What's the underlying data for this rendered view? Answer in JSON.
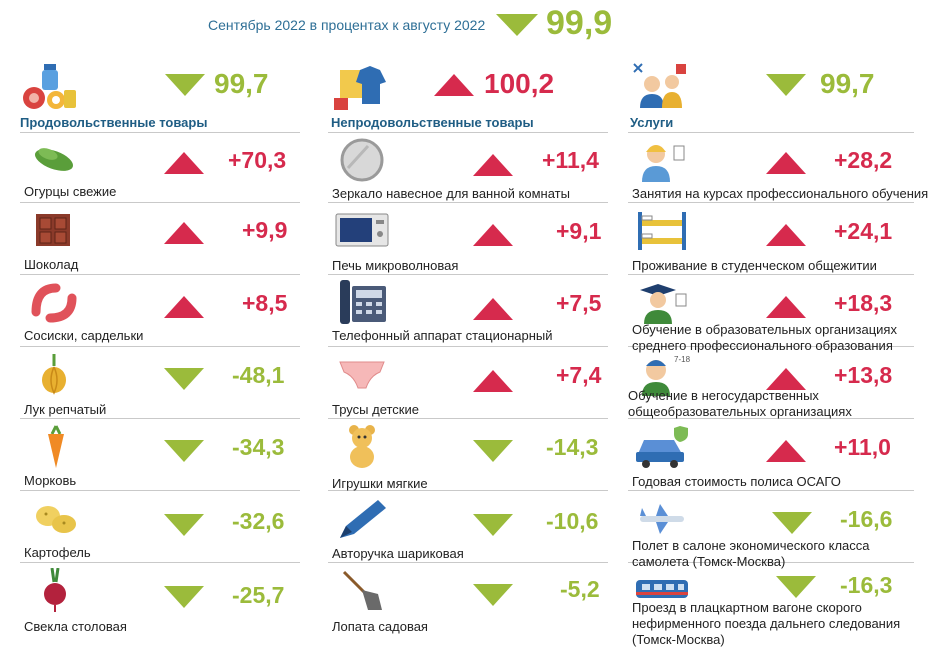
{
  "header": {
    "label": "Сентябрь 2022 в процентах к августу 2022",
    "value": "99,9",
    "direction": "down"
  },
  "colors": {
    "up": "#d62a4d",
    "down": "#9bbb3b",
    "title": "#1f5d84",
    "divider": "#c9c9c9"
  },
  "columns": [
    {
      "title": "Продовольственные товары",
      "value": "99,7",
      "direction": "down",
      "icon": "groceries-icon",
      "items": [
        {
          "name": [
            "Огурцы свежие"
          ],
          "value": "+70,3",
          "direction": "up",
          "icon": "cucumber-icon"
        },
        {
          "name": [
            "Шоколад"
          ],
          "value": "+9,9",
          "direction": "up",
          "icon": "chocolate-icon"
        },
        {
          "name": [
            "Сосиски, сардельки"
          ],
          "value": "+8,5",
          "direction": "up",
          "icon": "sausage-icon"
        },
        {
          "name": [
            "Лук репчатый"
          ],
          "value": "-48,1",
          "direction": "down",
          "icon": "onion-icon"
        },
        {
          "name": [
            "Морковь"
          ],
          "value": "-34,3",
          "direction": "down",
          "icon": "carrot-icon"
        },
        {
          "name": [
            "Картофель"
          ],
          "value": "-32,6",
          "direction": "down",
          "icon": "potato-icon"
        },
        {
          "name": [
            "Свекла столовая"
          ],
          "value": "-25,7",
          "direction": "down",
          "icon": "beet-icon"
        }
      ]
    },
    {
      "title": "Непродовольственные товары",
      "value": "100,2",
      "direction": "up",
      "icon": "clothes-icon",
      "items": [
        {
          "name": [
            "Зеркало навесное для ванной комнаты"
          ],
          "value": "+11,4",
          "direction": "up",
          "icon": "mirror-icon"
        },
        {
          "name": [
            "Печь микроволновая"
          ],
          "value": "+9,1",
          "direction": "up",
          "icon": "microwave-icon"
        },
        {
          "name": [
            "Телефонный аппарат стационарный"
          ],
          "value": "+7,5",
          "direction": "up",
          "icon": "phone-icon"
        },
        {
          "name": [
            "Трусы детские"
          ],
          "value": "+7,4",
          "direction": "up",
          "icon": "underwear-icon"
        },
        {
          "name": [
            "Игрушки мягкие"
          ],
          "value": "-14,3",
          "direction": "down",
          "icon": "teddy-bear-icon"
        },
        {
          "name": [
            "Авторучка шариковая"
          ],
          "value": "-10,6",
          "direction": "down",
          "icon": "pen-icon"
        },
        {
          "name": [
            "Лопата садовая"
          ],
          "value": "-5,2",
          "direction": "down",
          "icon": "shovel-icon"
        }
      ]
    },
    {
      "title": "Услуги",
      "value": "99,7",
      "direction": "down",
      "icon": "services-icon",
      "items": [
        {
          "name": [
            "Занятия на курсах профессионального обучения"
          ],
          "value": "+28,2",
          "direction": "up",
          "icon": "student-icon"
        },
        {
          "name": [
            "Проживание  в студенческом общежитии"
          ],
          "value": "+24,1",
          "direction": "up",
          "icon": "bunk-bed-icon"
        },
        {
          "name": [
            "Обучение в образовательных  организациях",
            "среднего профессионального образования"
          ],
          "value": "+18,3",
          "direction": "up",
          "icon": "graduate-icon"
        },
        {
          "name": [
            "Обучение в негосударственных",
            "общеобразовательных  организациях"
          ],
          "value": "+13,8",
          "direction": "up",
          "icon": "schoolboy-icon"
        },
        {
          "name": [
            "Годовая стоимость полиса ОСАГО"
          ],
          "value": "+11,0",
          "direction": "up",
          "icon": "car-insurance-icon"
        },
        {
          "name": [
            "Полет в салоне экономического  класса",
            "самолета (Томск-Москва)"
          ],
          "value": "-16,6",
          "direction": "down",
          "icon": "airplane-icon"
        },
        {
          "name": [
            "Проезд  в плацкартном вагоне скорого",
            "нефирменного поезда дальнего следования",
            "(Томск-Москва)"
          ],
          "value": "-16,3",
          "direction": "down",
          "icon": "train-icon"
        }
      ]
    }
  ]
}
